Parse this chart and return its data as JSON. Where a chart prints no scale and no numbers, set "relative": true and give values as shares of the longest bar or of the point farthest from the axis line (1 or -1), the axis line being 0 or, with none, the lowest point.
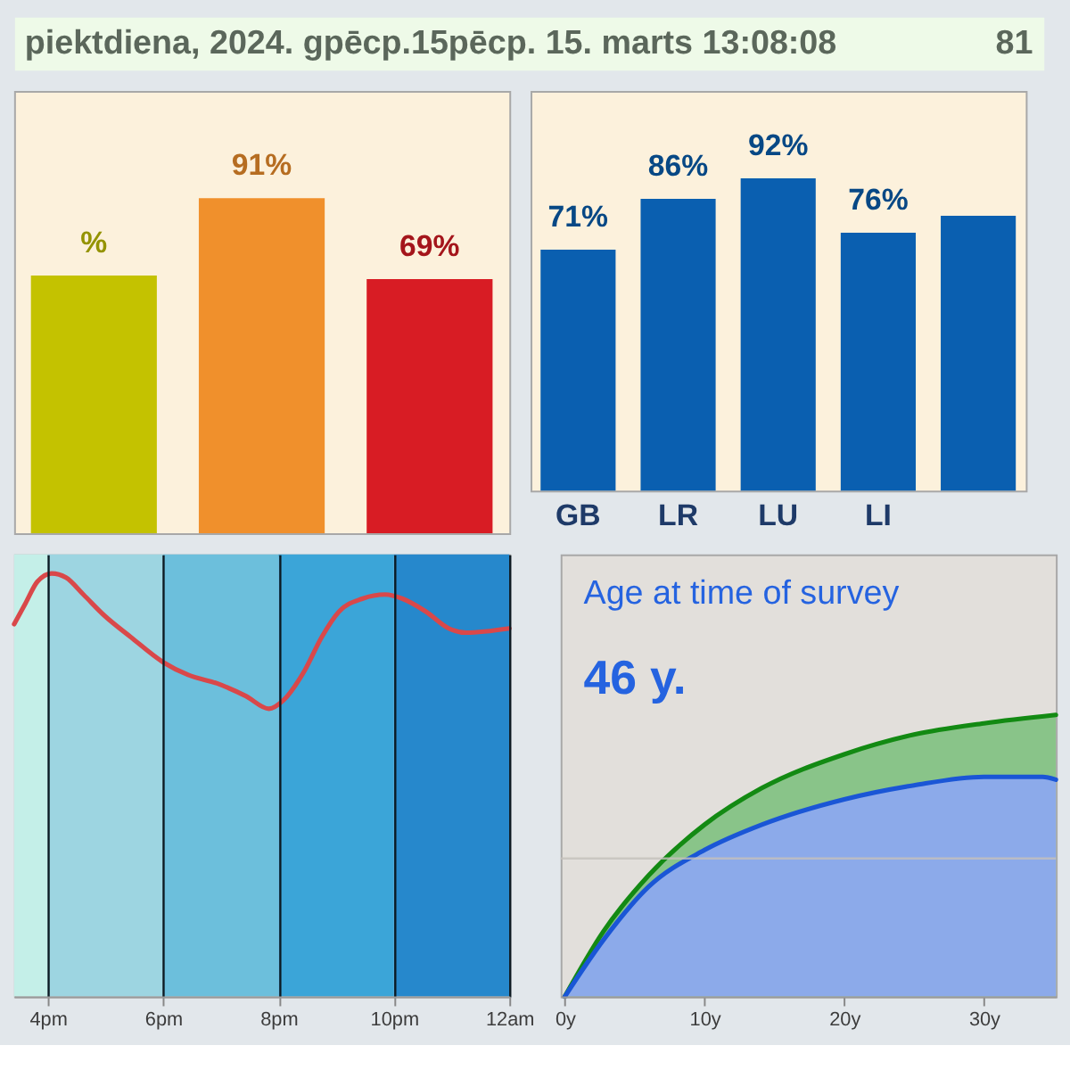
{
  "chart_data": [
    {
      "type": "other",
      "title": "piektdiena, 2024. gpēcp.15pēcp. 15. marts 13:08:08",
      "annotations": [
        "81"
      ]
    },
    {
      "type": "bar",
      "categories": [
        null,
        null,
        null
      ],
      "values": [
        70,
        91,
        69
      ],
      "colors": [
        "#c4c200",
        "#f0902c",
        "#d81c24"
      ],
      "value_labels": [
        "%",
        "91%",
        "69%"
      ]
    },
    {
      "type": "bar",
      "categories": [
        "GB",
        "LR",
        "LU",
        "LI",
        null
      ],
      "values": [
        71,
        86,
        92,
        76,
        81
      ],
      "color": "#0a5fb0",
      "value_labels": [
        "71%",
        "86%",
        "92%",
        "76%",
        null
      ]
    },
    {
      "type": "line",
      "relative": true,
      "x": [
        "2024-03-15T15:25",
        "2024-03-15T15:37",
        "2024-03-15T15:49",
        "2024-03-15T16:04",
        "2024-03-15T16:19",
        "2024-03-15T16:37",
        "2024-03-15T16:59",
        "2024-03-15T17:26",
        "2024-03-15T18:00",
        "2024-03-15T18:26",
        "2024-03-15T18:56",
        "2024-03-15T19:26",
        "2024-03-15T19:50",
        "2024-03-15T20:05",
        "2024-03-15T20:27",
        "2024-03-15T20:45",
        "2024-03-15T21:03",
        "2024-03-15T21:27",
        "2024-03-15T21:51",
        "2024-03-15T22:09",
        "2024-03-15T22:33",
        "2024-03-15T22:57",
        "2024-03-15T23:15",
        "2024-03-16T00:00"
      ],
      "values": [
        0.88,
        0.93,
        0.98,
        1,
        0.99,
        0.95,
        0.9,
        0.85,
        0.79,
        0.76,
        0.74,
        0.71,
        0.68,
        0.7,
        0.77,
        0.85,
        0.91,
        0.94,
        0.95,
        0.94,
        0.91,
        0.87,
        0.86,
        0.87
      ],
      "color": "#d9484a",
      "xlim": [
        "2024-03-15T15:25",
        "2024-03-16T00:00"
      ],
      "xticks": [
        {
          "value": "2024-03-15T16:00",
          "label": "4pm"
        },
        {
          "value": "2024-03-15T18:00",
          "label": "6pm"
        },
        {
          "value": "2024-03-15T20:00",
          "label": "8pm"
        },
        {
          "value": "2024-03-15T22:00",
          "label": "10pm"
        },
        {
          "value": "2024-03-16T00:00",
          "label": "12am"
        }
      ],
      "grid": "x",
      "bands": [
        {
          "axis": "x",
          "from": "2024-03-15T15:25",
          "to": "2024-03-15T16:00",
          "color": "#c4efe8"
        },
        {
          "axis": "x",
          "from": "2024-03-15T16:00",
          "to": "2024-03-15T18:00",
          "color": "#9dd5e1"
        },
        {
          "axis": "x",
          "from": "2024-03-15T18:00",
          "to": "2024-03-15T20:00",
          "color": "#6cbfdc"
        },
        {
          "axis": "x",
          "from": "2024-03-15T20:00",
          "to": "2024-03-15T22:00",
          "color": "#3ba5d8"
        },
        {
          "axis": "x",
          "from": "2024-03-15T22:00",
          "to": "2024-03-16T00:00",
          "color": "#2688cc"
        }
      ]
    },
    {
      "type": "area",
      "relative": true,
      "title": "Age at time of survey",
      "annotations": [
        "46 y."
      ],
      "series": [
        {
          "color": "#138a13",
          "x": [
            0,
            2.75,
            6,
            10,
            14.1,
            20,
            25,
            30,
            35.15
          ],
          "values": [
            0,
            0.23,
            0.43,
            0.61,
            0.74,
            0.86,
            0.93,
            0.97,
            1
          ]
        },
        {
          "color": "#1a56d6",
          "x": [
            0,
            2.75,
            6,
            10,
            14.1,
            20,
            25,
            30,
            34.2,
            35.15
          ],
          "values": [
            0,
            0.2,
            0.39,
            0.52,
            0.61,
            0.7,
            0.75,
            0.78,
            0.78,
            0.77
          ]
        }
      ],
      "xlim": [
        -0.3,
        35.15
      ],
      "xticks": [
        {
          "value": 0,
          "label": "0y"
        },
        {
          "value": 10,
          "label": "10y"
        },
        {
          "value": 20,
          "label": "20y"
        },
        {
          "value": 30,
          "label": "30y"
        }
      ],
      "ref_lines": [
        {
          "axis": "y",
          "value": 0.49,
          "color": "#c4c0bc"
        }
      ]
    }
  ]
}
